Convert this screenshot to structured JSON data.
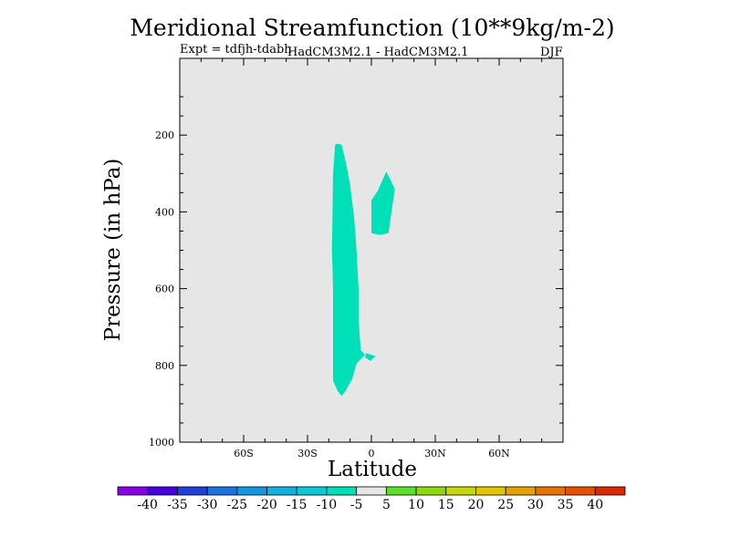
{
  "title": "Meridional Streamfunction (10**9kg/m-2)",
  "subtitle_left": "Expt = tdfjh-tdabh",
  "subtitle_center": "HadCM3M2.1 - HadCM3M2.1",
  "subtitle_right": "DJF",
  "chart_data": {
    "type": "contour",
    "title": "Meridional Streamfunction (10**9kg/m-2)",
    "xlabel": "Latitude",
    "ylabel": "Pressure (in hPa)",
    "xlim": [
      -90,
      90
    ],
    "ylim": [
      1000,
      0
    ],
    "x_ticks": [
      {
        "value": -60,
        "label": "60S"
      },
      {
        "value": -30,
        "label": "30S"
      },
      {
        "value": 0,
        "label": "0"
      },
      {
        "value": 30,
        "label": "30N"
      },
      {
        "value": 60,
        "label": "60N"
      }
    ],
    "y_ticks": [
      {
        "value": 200,
        "label": "200"
      },
      {
        "value": 400,
        "label": "400"
      },
      {
        "value": 600,
        "label": "600"
      },
      {
        "value": 800,
        "label": "800"
      },
      {
        "value": 1000,
        "label": "1000"
      }
    ],
    "background_color": "#e6e6e6",
    "regions": [
      {
        "name": "main-cell",
        "level": "-10 to -5",
        "color": "#00e0b8",
        "points": [
          [
            -16,
            222
          ],
          [
            -14,
            225
          ],
          [
            -12,
            270
          ],
          [
            -10,
            330
          ],
          [
            -8,
            420
          ],
          [
            -7,
            500
          ],
          [
            -6,
            600
          ],
          [
            -6,
            680
          ],
          [
            -5,
            760
          ],
          [
            -3,
            772
          ],
          [
            -7,
            795
          ],
          [
            -9,
            835
          ],
          [
            -12,
            865
          ],
          [
            -14,
            880
          ],
          [
            -16,
            865
          ],
          [
            -18,
            840
          ],
          [
            -18,
            600
          ],
          [
            -18.5,
            500
          ],
          [
            -18,
            300
          ],
          [
            -17,
            225
          ]
        ]
      },
      {
        "name": "upper-cell",
        "level": "-10 to -5",
        "color": "#00e0b8",
        "points": [
          [
            7,
            295
          ],
          [
            11,
            340
          ],
          [
            8,
            455
          ],
          [
            4,
            460
          ],
          [
            0,
            455
          ],
          [
            0,
            370
          ],
          [
            3,
            345
          ]
        ]
      },
      {
        "name": "small-cell",
        "level": "-10 to -5",
        "color": "#00e0b8",
        "points": [
          [
            -2.5,
            768
          ],
          [
            2,
            776
          ],
          [
            -0.5,
            788
          ],
          [
            -3,
            779
          ]
        ]
      }
    ],
    "colorbar": {
      "labels": [
        "-40",
        "-35",
        "-30",
        "-25",
        "-20",
        "-15",
        "-10",
        "-5",
        "5",
        "10",
        "15",
        "20",
        "25",
        "30",
        "35",
        "40"
      ],
      "colors": [
        "#8a00e6",
        "#4500e0",
        "#2040dc",
        "#1a73e0",
        "#1396e0",
        "#10b0e0",
        "#0cc8d8",
        "#00e0b8",
        "#e6e6e6",
        "#5ae22a",
        "#8fd80a",
        "#c6d80a",
        "#e2c600",
        "#e6a000",
        "#e67400",
        "#e45000",
        "#dc2800"
      ]
    }
  }
}
